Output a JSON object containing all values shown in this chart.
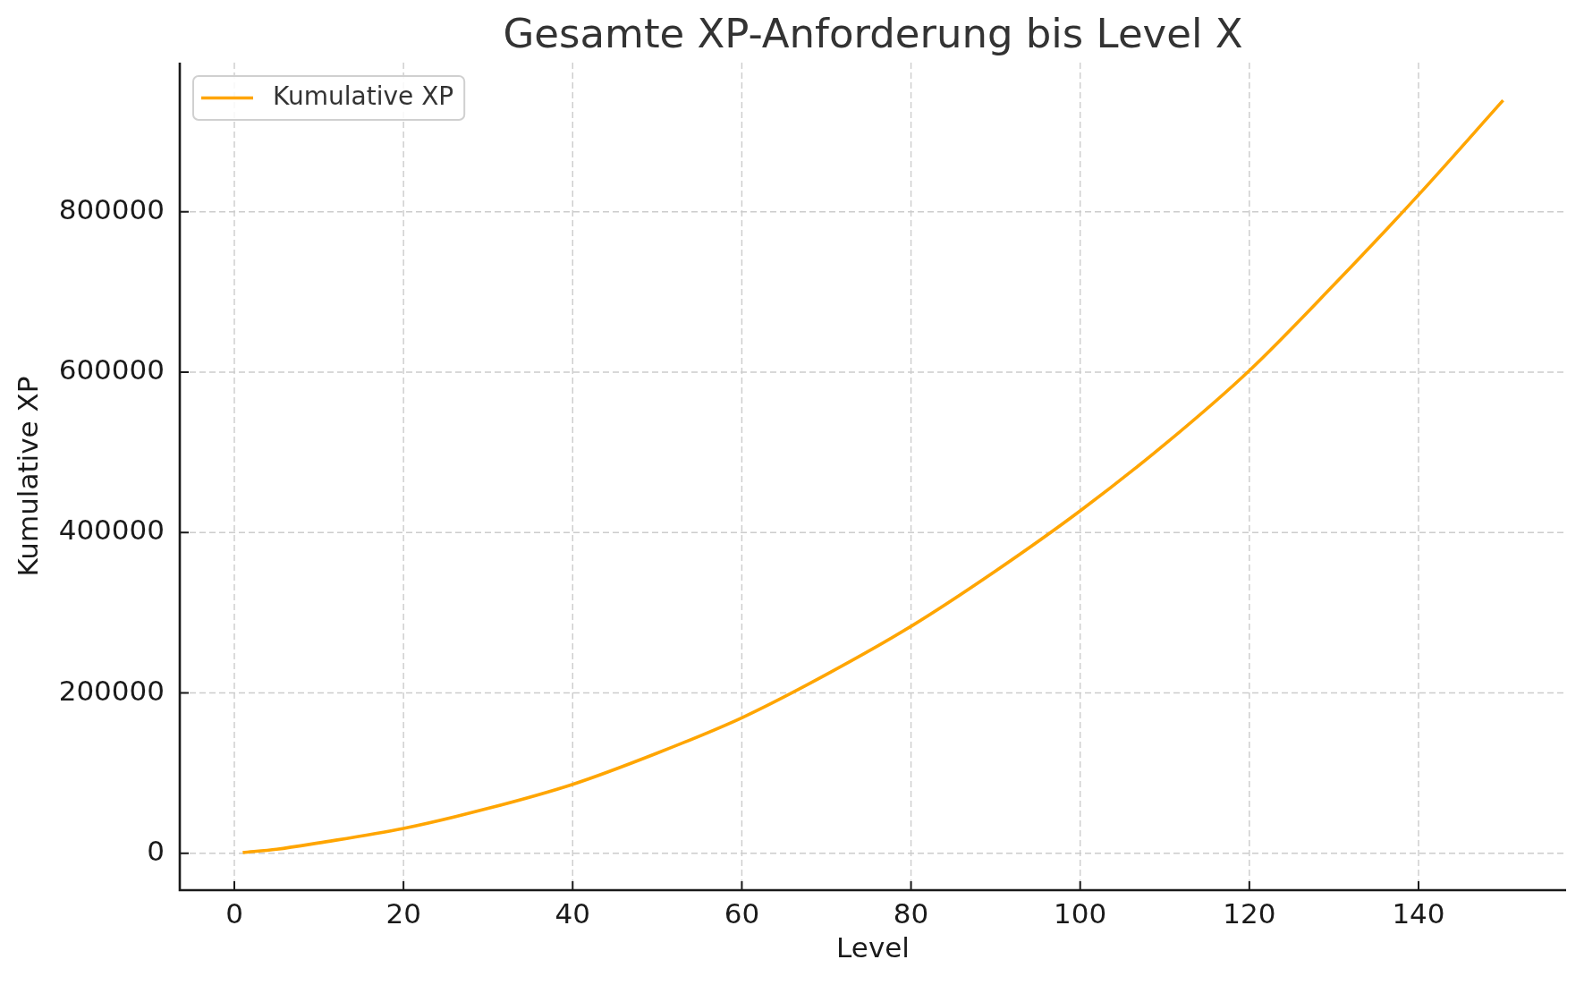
{
  "chart_data": {
    "type": "line",
    "title": "Gesamte XP-Anforderung bis Level X",
    "xlabel": "Level",
    "ylabel": "Kumulative XP",
    "x": [
      1,
      5,
      10,
      20,
      30,
      40,
      50,
      60,
      70,
      80,
      90,
      100,
      110,
      120,
      130,
      140,
      150
    ],
    "series": [
      {
        "name": "Kumulative XP",
        "color": "#ffa500",
        "values": [
          1000,
          5000,
          13000,
          31000,
          56000,
          86000,
          125000,
          169000,
          223000,
          283000,
          352000,
          427000,
          510000,
          602000,
          709000,
          821000,
          939000
        ]
      }
    ],
    "xlim": [
      -6.45,
      157.45
    ],
    "ylim": [
      -46000,
      986000
    ],
    "xticks": [
      0,
      20,
      40,
      60,
      80,
      100,
      120,
      140
    ],
    "yticks": [
      0,
      200000,
      400000,
      600000,
      800000
    ],
    "grid": true,
    "legend": "top left"
  }
}
